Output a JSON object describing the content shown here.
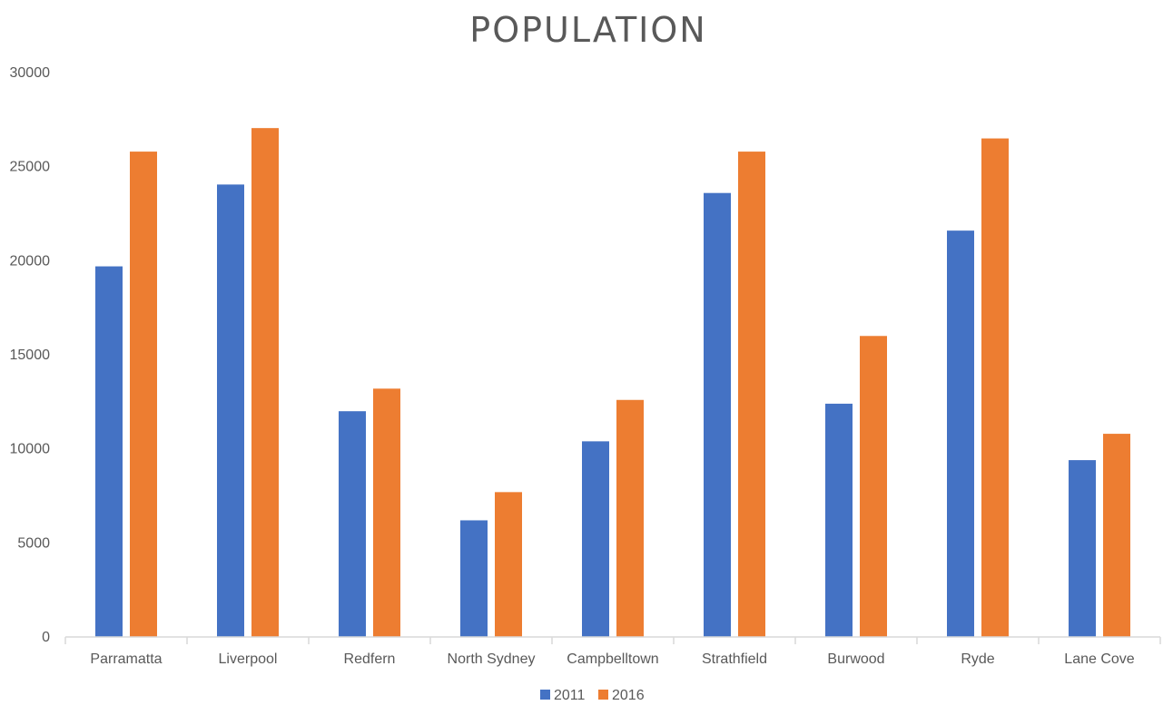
{
  "chart_data": {
    "type": "bar",
    "title": "POPULATION",
    "xlabel": "",
    "ylabel": "",
    "ylim": [
      0,
      30000
    ],
    "yticks": [
      "0",
      "5000",
      "10000",
      "15000",
      "20000",
      "25000",
      "30000"
    ],
    "grid": false,
    "legend_position": "bottom",
    "categories": [
      "Parramatta",
      "Liverpool",
      "Redfern",
      "North Sydney",
      "Campbelltown",
      "Strathfield",
      "Burwood",
      "Ryde",
      "Lane Cove"
    ],
    "series": [
      {
        "name": "2011",
        "color": "#4472C4",
        "values": [
          19700,
          24050,
          12000,
          6200,
          10400,
          23600,
          12400,
          21600,
          9400
        ]
      },
      {
        "name": "2016",
        "color": "#ED7D31",
        "values": [
          25800,
          27050,
          13200,
          7700,
          12600,
          25800,
          16000,
          26500,
          10800
        ]
      }
    ]
  }
}
